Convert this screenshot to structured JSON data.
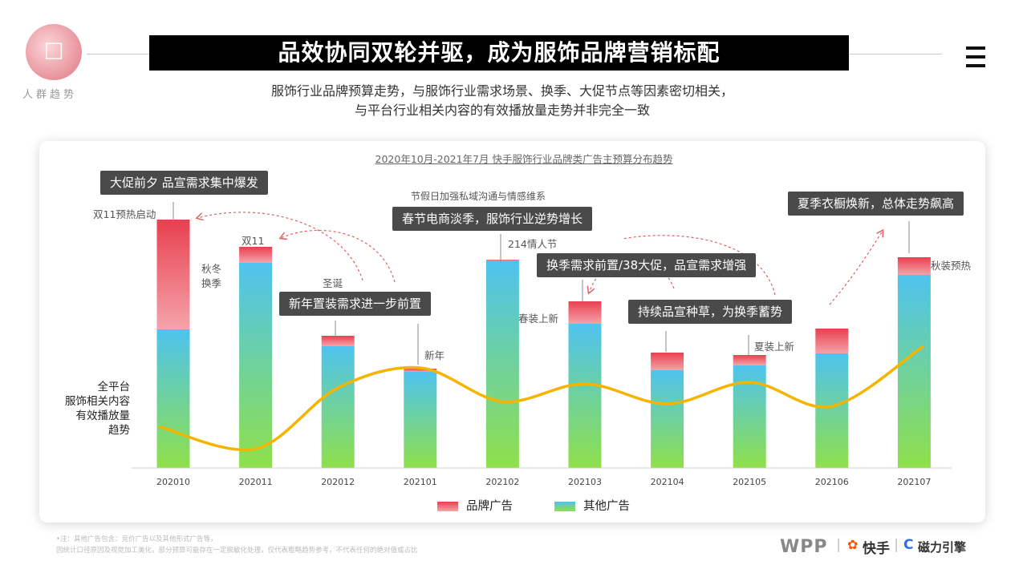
{
  "header": {
    "logo_text": "人群趋势",
    "title": "品效协同双轮并驱，成为服饰品牌营销标配",
    "subtitle_line1": "服饰行业品牌预算走势，与服饰行业需求场景、换季、大促节点等因素密切相关，",
    "subtitle_line2": "与平台行业相关内容的有效播放量走势并非完全一致"
  },
  "left_label": {
    "line1": "全平台",
    "line2": "服饰相关内容",
    "line3": "有效播放量",
    "line4": "趋势"
  },
  "annotations": {
    "box1": "大促前夕 品宣需求集中爆发",
    "box2": "春节电商淡季，服饰行业逆势增长",
    "box3": "新年置装需求进一步前置",
    "box4": "换季需求前置/38大促，品宣需求增强",
    "box5": "持续品宣种草，为换季蓄势",
    "box6": "夏季衣橱焕新，总体走势飙高",
    "box2_caption": "节假日加强私域沟通与情感维系",
    "label_202010": "双11预热启动",
    "label_202011": "双11",
    "label_autumn": "秋冬\n换季",
    "label_202012": "圣诞",
    "label_202101": "新年",
    "label_202102": "214情人节",
    "label_202103": "春装上新",
    "label_202105": "夏装上新",
    "label_202107": "秋装预热"
  },
  "footer": {
    "note1": "•注：其他广告包含：竞价广告以及其他形式广告等，",
    "note2": "因统计口径原因及视觉加工美化，部分预算可能存在一定脱敏化处理，仅代表粗略趋势参考，不代表任何的绝对值或占比",
    "brand_wpp": "WPP",
    "brand_kuaishou": "快手",
    "brand_cili": "磁力引擎"
  },
  "colors": {
    "brand_top": "#e8404f",
    "brand_bottom": "#f5a3aa",
    "other_top": "#4ec3ef",
    "other_bottom": "#8fe04a",
    "trend": "#f5b400"
  },
  "chart_data": {
    "type": "bar",
    "title": "2020年10月-2021年7月  快手服饰行业品牌类广告主预算分布趋势",
    "categories": [
      "202010",
      "202011",
      "202012",
      "202101",
      "202102",
      "202103",
      "202104",
      "202105",
      "202106",
      "202107"
    ],
    "ylim": [
      0,
      310
    ],
    "series": [
      {
        "name": "其他广告",
        "values": [
          173,
          256,
          152,
          120,
          259,
          180,
          122,
          128,
          143,
          241
        ]
      },
      {
        "name": "品牌广告",
        "values": [
          137,
          20,
          13,
          4,
          1,
          28,
          22,
          13,
          31,
          22
        ]
      }
    ],
    "trend_line": {
      "name": "全平台服饰相关内容有效播放量趋势",
      "values": [
        51,
        24,
        100,
        125,
        83,
        105,
        80,
        107,
        77,
        151
      ]
    },
    "legend": [
      "品牌广告",
      "其他广告"
    ],
    "legend_position": "bottom"
  }
}
